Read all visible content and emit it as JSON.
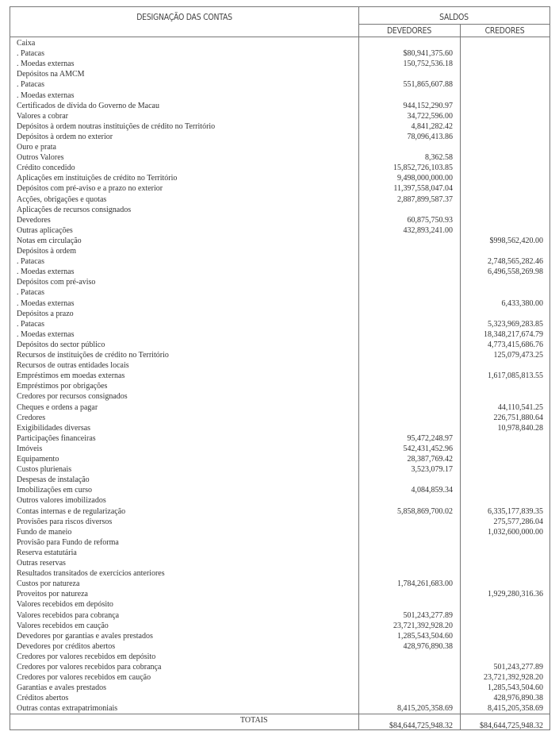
{
  "header": {
    "designacao": "DESIGNAÇÃO DAS CONTAS",
    "saldos": "SALDOS",
    "devedores": "DEVEDORES",
    "credores": "CREDORES"
  },
  "rows": [
    [
      "Caixa",
      "",
      ""
    ],
    [
      ". Patacas",
      "$80,941,375.60",
      ""
    ],
    [
      ". Moedas externas",
      "150,752,536.18",
      ""
    ],
    [
      "Depósitos na AMCM",
      "",
      ""
    ],
    [
      ". Patacas",
      "551,865,607.88",
      ""
    ],
    [
      ". Moedas externas",
      "",
      ""
    ],
    [
      "Certificados de dívida do Governo de Macau",
      "944,152,290.97",
      ""
    ],
    [
      "Valores a cobrar",
      "34,722,596.00",
      ""
    ],
    [
      "Depósitos à ordem noutras instituições de crédito no Território",
      "4,841,282.42",
      ""
    ],
    [
      "Depósitos à ordem no exterior",
      "78,096,413.86",
      ""
    ],
    [
      "Ouro e prata",
      "",
      ""
    ],
    [
      "Outros Valores",
      "8,362.58",
      ""
    ],
    [
      "Crédito concedido",
      "15,852,726,103.85",
      ""
    ],
    [
      "Aplicações em instituições de crédito no Território",
      "9,498,000,000.00",
      ""
    ],
    [
      "Depósitos com pré-aviso e a prazo no exterior",
      "11,397,558,047.04",
      ""
    ],
    [
      "Acções, obrigações e quotas",
      "2,887,899,587.37",
      ""
    ],
    [
      "Aplicações de recursos consignados",
      "",
      ""
    ],
    [
      "Devedores",
      "60,875,750.93",
      ""
    ],
    [
      "Outras aplicações",
      "432,893,241.00",
      ""
    ],
    [
      "Notas em circulação",
      "",
      "$998,562,420.00"
    ],
    [
      "Depósitos à ordem",
      "",
      ""
    ],
    [
      ". Patacas",
      "",
      "2,748,565,282.46"
    ],
    [
      ". Moedas externas",
      "",
      "6,496,558,269.98"
    ],
    [
      "Depósitos com pré-aviso",
      "",
      ""
    ],
    [
      ". Patacas",
      "",
      ""
    ],
    [
      ". Moedas externas",
      "",
      "6,433,380.00"
    ],
    [
      "Depósitos a prazo",
      "",
      ""
    ],
    [
      ". Patacas",
      "",
      "5,323,969,283.85"
    ],
    [
      ". Moedas externas",
      "",
      "18,348,217,674.79"
    ],
    [
      "Depósitos do sector público",
      "",
      "4,773,415,686.76"
    ],
    [
      "Recursos de instituições de crédito no Território",
      "",
      "125,079,473.25"
    ],
    [
      "Recursos de outras entidades locais",
      "",
      ""
    ],
    [
      "Empréstimos em moedas externas",
      "",
      "1,617,085,813.55"
    ],
    [
      "Empréstimos por obrigações",
      "",
      ""
    ],
    [
      "Credores por recursos consignados",
      "",
      ""
    ],
    [
      "Cheques e ordens a pagar",
      "",
      "44,110,541.25"
    ],
    [
      "Credores",
      "",
      "226,751,880.64"
    ],
    [
      "Exigibilidades diversas",
      "",
      "10,978,840.28"
    ],
    [
      "Participações financeiras",
      "95,472,248.97",
      ""
    ],
    [
      "Imóveis",
      "542,431,452.96",
      ""
    ],
    [
      "Equipamento",
      "28,387,769.42",
      ""
    ],
    [
      "Custos plurienais",
      "3,523,079.17",
      ""
    ],
    [
      "Despesas de instalação",
      "",
      ""
    ],
    [
      "Imobilizações em curso",
      "4,084,859.34",
      ""
    ],
    [
      "Outros valores imobilizados",
      "",
      ""
    ],
    [
      "Contas internas e de regularização",
      "5,858,869,700.02",
      "6,335,177,839.35"
    ],
    [
      "Provisões para riscos diversos",
      "",
      "275,577,286.04"
    ],
    [
      "Fundo de maneio",
      "",
      "1,032,600,000.00"
    ],
    [
      "Provisão para Fundo de reforma",
      "",
      ""
    ],
    [
      "Reserva estatutária",
      "",
      ""
    ],
    [
      "Outras reservas",
      "",
      ""
    ],
    [
      "Resultados transitados de exercícios anteriores",
      "",
      ""
    ],
    [
      "Custos por natureza",
      "1,784,261,683.00",
      ""
    ],
    [
      "Proveitos por natureza",
      "",
      "1,929,280,316.36"
    ],
    [
      "Valores recebidos em depósito",
      "",
      ""
    ],
    [
      "Valores recebidos para cobrança",
      "501,243,277.89",
      ""
    ],
    [
      "Valores recebidos em caução",
      "23,721,392,928.20",
      ""
    ],
    [
      "Devedores por garantias e avales prestados",
      "1,285,543,504.60",
      ""
    ],
    [
      "Devedores por créditos abertos",
      "428,976,890.38",
      ""
    ],
    [
      "Credores por valores recebidos em depósito",
      "",
      ""
    ],
    [
      "Credores por valores recebidos para cobrança",
      "",
      "501,243,277.89"
    ],
    [
      "Credores por valores recebidos em caução",
      "",
      "23,721,392,928.20"
    ],
    [
      "Garantias e avales prestados",
      "",
      "1,285,543,504.60"
    ],
    [
      "Créditos abertos",
      "",
      "428,976,890.38"
    ],
    [
      "Outras contas extrapatrimoniais",
      "8,415,205,358.69",
      "8,415,205,358.69"
    ]
  ],
  "totals": {
    "label": "TOTAIS",
    "devedores": "$84,644,725,948.32",
    "credores": "$84,644,725,948.32"
  }
}
